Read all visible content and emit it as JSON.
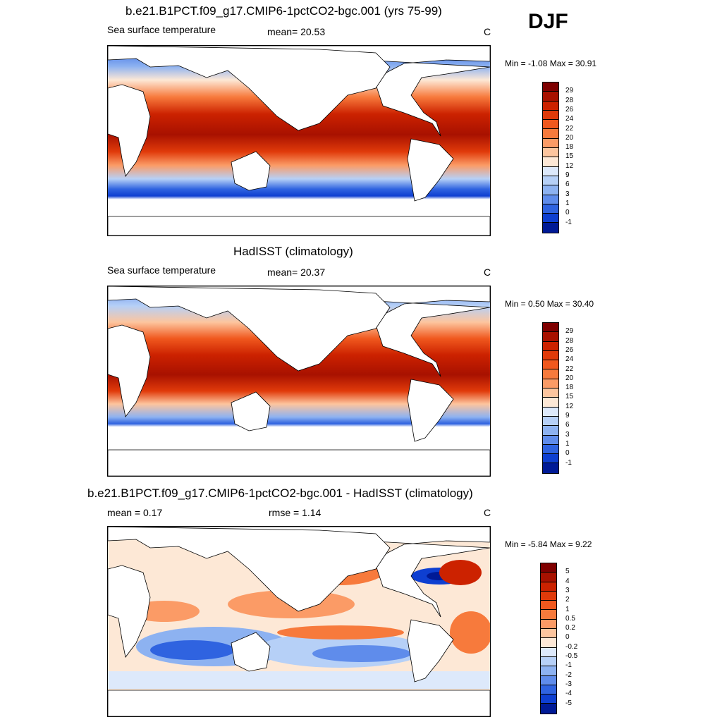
{
  "season": "DJF",
  "panels": [
    {
      "title": "b.e21.B1PCT.f09_g17.CMIP6-1pctCO2-bgc.001 (yrs 75-99)",
      "left_label": "Sea surface temperature",
      "center_label": "mean=  20.53",
      "units": "C",
      "minmax": "Min =  -1.08 Max =  30.91",
      "colorbar": {
        "labels": [
          "29",
          "28",
          "26",
          "24",
          "22",
          "20",
          "18",
          "15",
          "12",
          "9",
          "6",
          "3",
          "1",
          "0",
          "-1"
        ],
        "colors": [
          "#7f0000",
          "#a81100",
          "#cc2200",
          "#e03a0a",
          "#f0581e",
          "#f77a3c",
          "#fb9b66",
          "#fdc59e",
          "#fde8d6",
          "#dde9fb",
          "#b6d0f7",
          "#8db2f1",
          "#5f8ceb",
          "#2f63e0",
          "#0e3fd1",
          "#001a96"
        ]
      }
    },
    {
      "title": "HadISST (climatology)",
      "left_label": "Sea surface temperature",
      "center_label": "mean=  20.37",
      "units": "C",
      "minmax": "Min =   0.50 Max =  30.40",
      "colorbar": {
        "labels": [
          "29",
          "28",
          "26",
          "24",
          "22",
          "20",
          "18",
          "15",
          "12",
          "9",
          "6",
          "3",
          "1",
          "0",
          "-1"
        ],
        "colors": [
          "#7f0000",
          "#a81100",
          "#cc2200",
          "#e03a0a",
          "#f0581e",
          "#f77a3c",
          "#fb9b66",
          "#fdc59e",
          "#fde8d6",
          "#dde9fb",
          "#b6d0f7",
          "#8db2f1",
          "#5f8ceb",
          "#2f63e0",
          "#0e3fd1",
          "#001a96"
        ]
      }
    },
    {
      "title": "b.e21.B1PCT.f09_g17.CMIP6-1pctCO2-bgc.001 - HadISST (climatology)",
      "left_label": "mean =   0.17",
      "center_label": "rmse =   1.14",
      "units": "C",
      "minmax": "Min =  -5.84 Max =   9.22",
      "colorbar": {
        "labels": [
          "5",
          "4",
          "3",
          "2",
          "1",
          "0.5",
          "0.2",
          "0",
          "-0.2",
          "-0.5",
          "-1",
          "-2",
          "-3",
          "-4",
          "-5"
        ],
        "colors": [
          "#7f0000",
          "#a81100",
          "#cc2200",
          "#e03a0a",
          "#f0581e",
          "#f77a3c",
          "#fb9b66",
          "#fdc59e",
          "#fde8d6",
          "#dde9fb",
          "#b6d0f7",
          "#8db2f1",
          "#5f8ceb",
          "#2f63e0",
          "#0e3fd1",
          "#001a96"
        ]
      }
    }
  ],
  "colors": {
    "land": "#ffffff",
    "coastline": "#000000"
  }
}
